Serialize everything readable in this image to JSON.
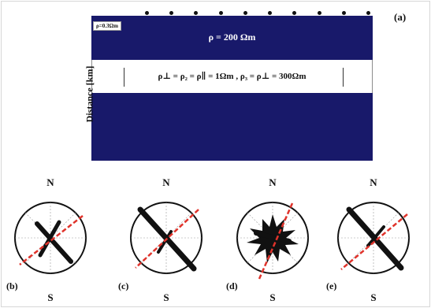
{
  "model": {
    "cell_label": "ρ=0.3Ωm",
    "layer_top_resistivity": "ρ = 200 Ωm",
    "layer_mid_resistivity": "ρ⊥ = ρ₂ = ρ∥ = 1Ωm , ρ₃ = ρ⊥ = 300Ωm",
    "y_axis_label": "Distance [km]",
    "panel_label": "(a)",
    "stations": 10
  },
  "compasses": [
    {
      "panel_label": "(b)",
      "north": "N",
      "south": "S"
    },
    {
      "panel_label": "(c)",
      "north": "N",
      "south": "S"
    },
    {
      "panel_label": "(d)",
      "north": "N",
      "south": "S"
    },
    {
      "panel_label": "(e)",
      "north": "N",
      "south": "S"
    }
  ],
  "colors": {
    "conductor_blue": "#18196a",
    "strike_dashed_red": "#e0332b",
    "rose_black": "#111111"
  }
}
